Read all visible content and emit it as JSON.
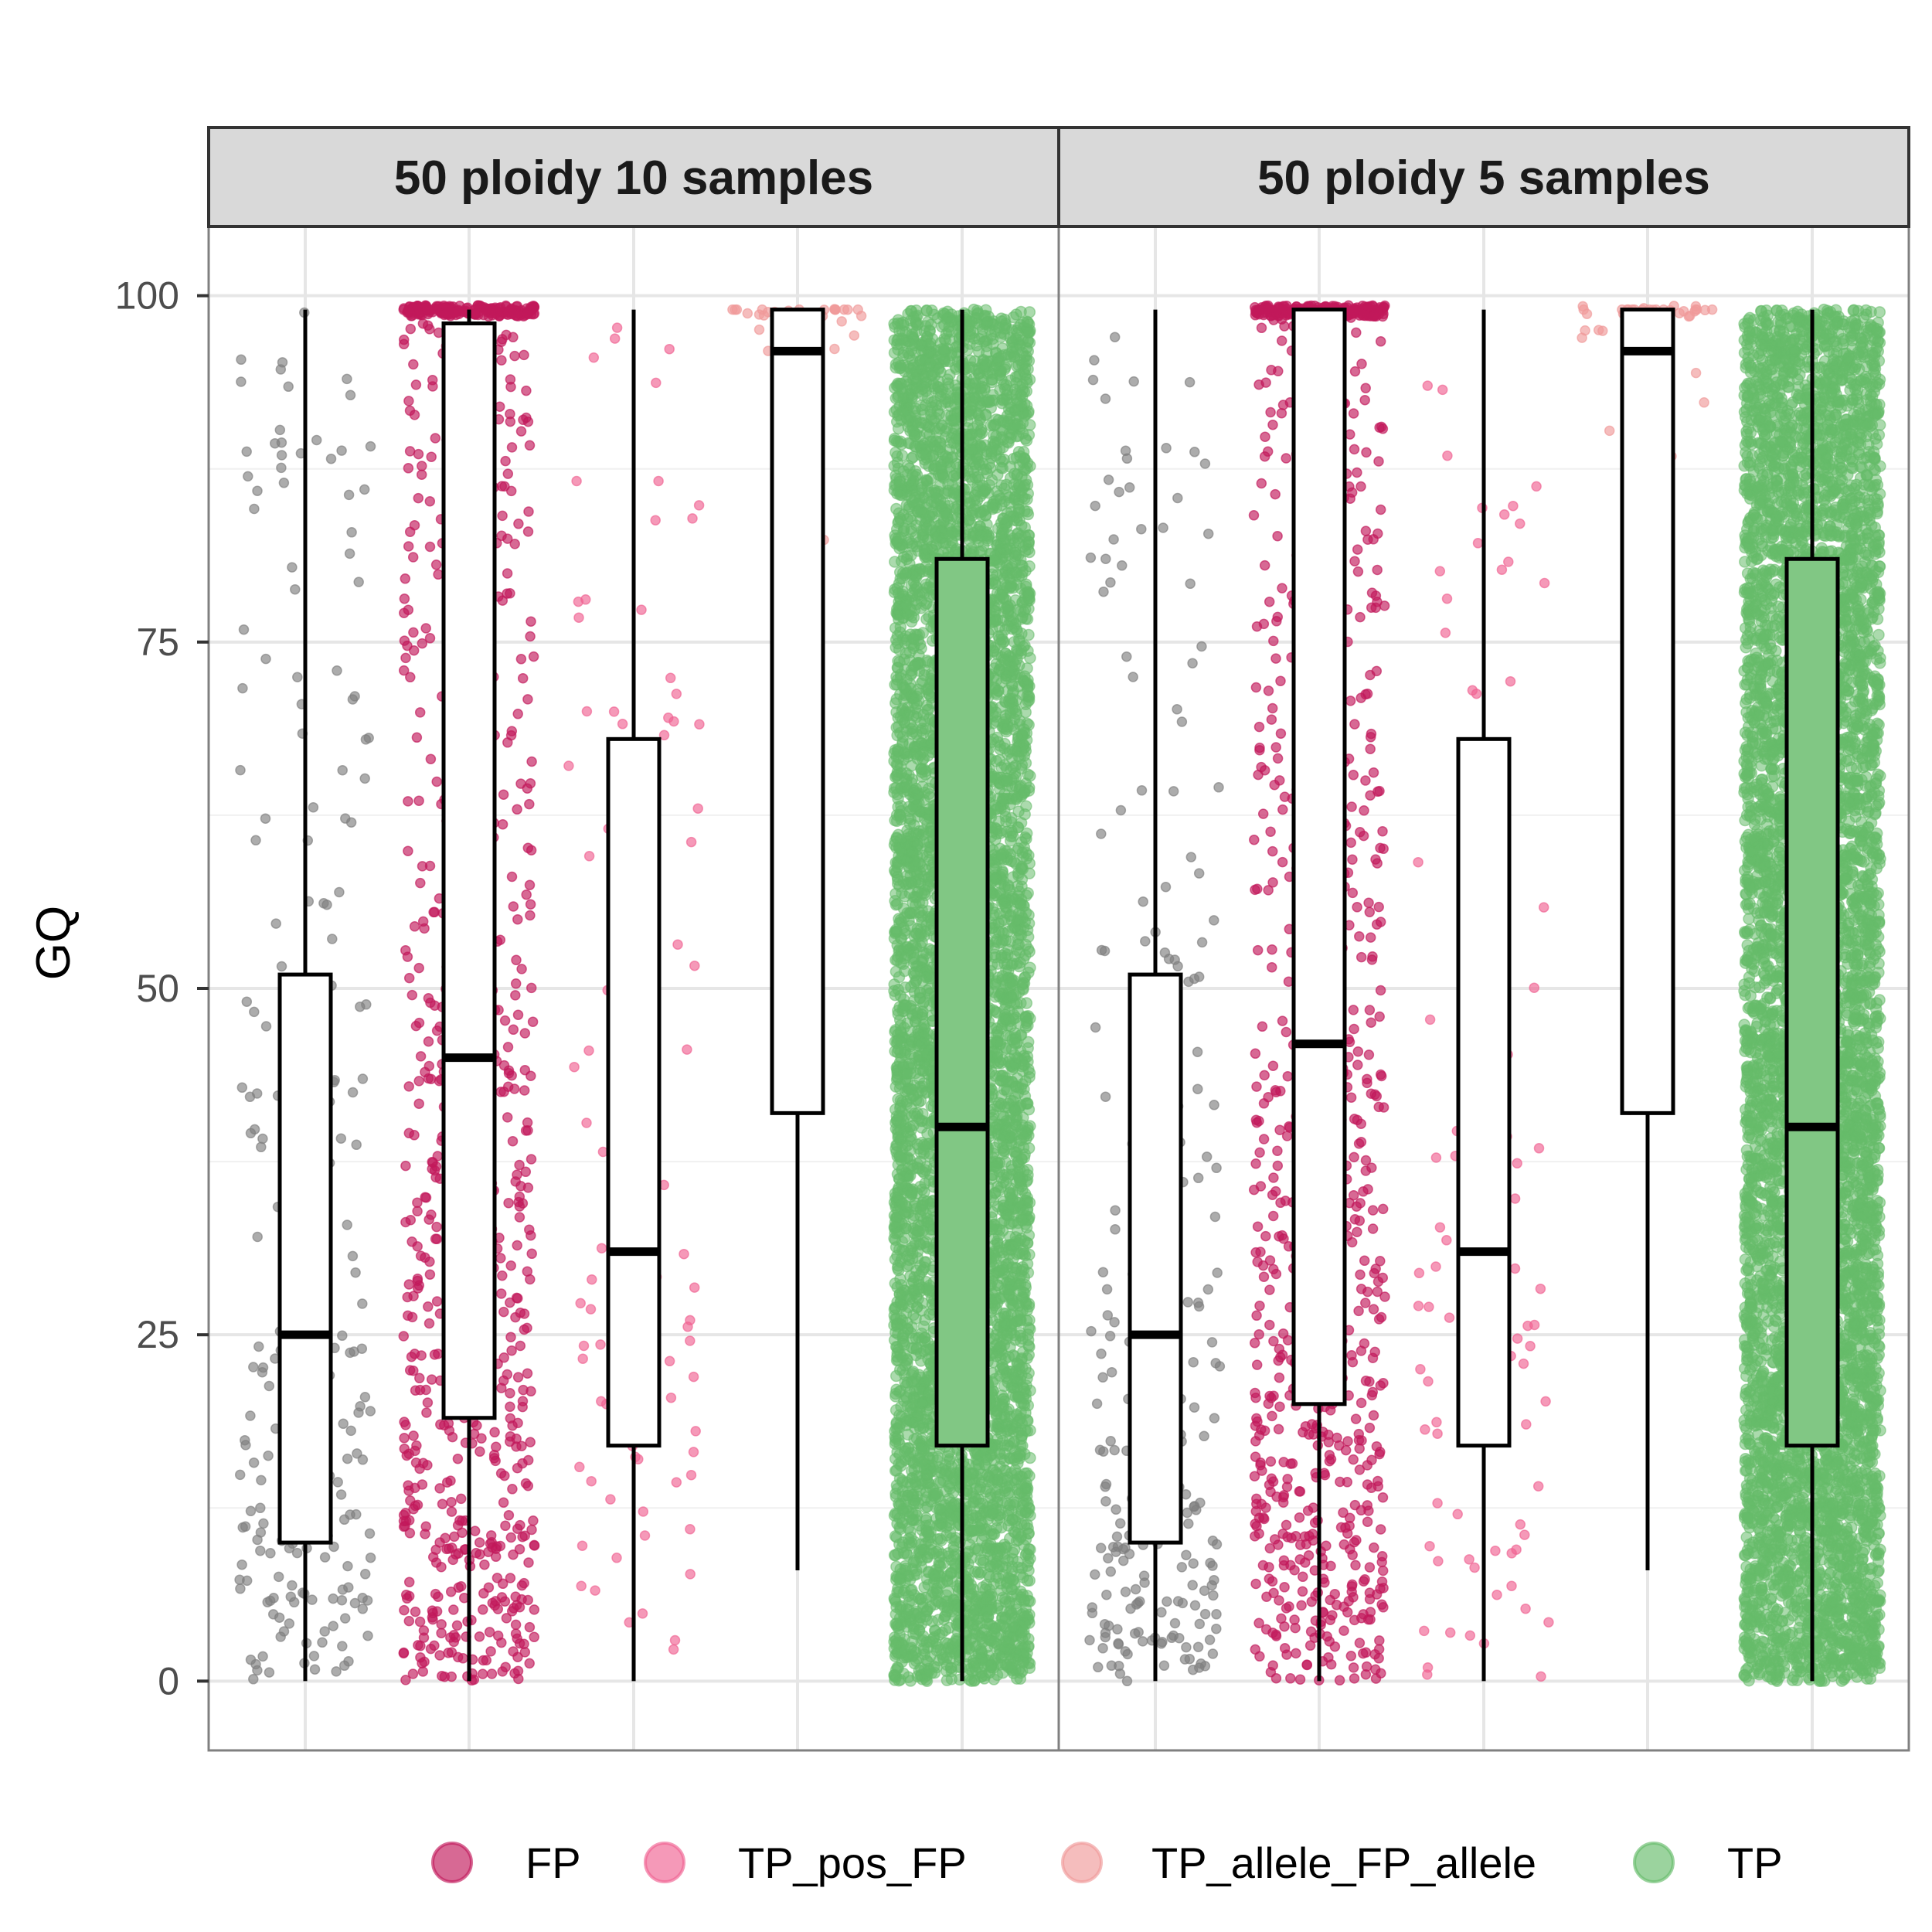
{
  "chart_data": {
    "type": "boxplot with jittered points",
    "ylabel": "GQ",
    "xlabel": "",
    "ylim": [
      -5,
      105
    ],
    "yticks": [
      "0",
      "25",
      "50",
      "75",
      "100"
    ],
    "grid": true,
    "legend_position": "bottom",
    "legend": [
      {
        "name": "FP",
        "color": "#c2185b"
      },
      {
        "name": "TP_pos_FP",
        "color": "#f06292"
      },
      {
        "name": "TP_allele_FP_allele",
        "color": "#ef9a9a"
      },
      {
        "name": "TP",
        "color": "#66bb6a"
      }
    ],
    "groups": [
      {
        "key": "unlabeled",
        "color": "#808080",
        "fill": "#ffffff"
      },
      {
        "key": "FP",
        "color": "#c2185b",
        "fill": "#ffffff"
      },
      {
        "key": "TP_pos_FP",
        "color": "#f06292",
        "fill": "#ffffff"
      },
      {
        "key": "TP_allele_FP_allele",
        "color": "#ef9a9a",
        "fill": "#ffffff"
      },
      {
        "key": "TP",
        "color": "#66bb6a",
        "fill": "#81c784"
      }
    ],
    "panels": [
      {
        "title": "50 ploidy 10 samples",
        "boxes": [
          {
            "group": "unlabeled",
            "min": 0,
            "q1": 10,
            "median": 25,
            "q3": 51,
            "max": 99,
            "n_points": 230
          },
          {
            "group": "FP",
            "min": 0,
            "q1": 19,
            "median": 45,
            "q3": 98,
            "max": 99,
            "n_points": 900
          },
          {
            "group": "TP_pos_FP",
            "min": 0,
            "q1": 17,
            "median": 31,
            "q3": 68,
            "max": 99,
            "n_points": 95
          },
          {
            "group": "TP_allele_FP_allele",
            "min": 8,
            "q1": 41,
            "median": 96,
            "q3": 99,
            "max": 99,
            "n_points": 40
          },
          {
            "group": "TP",
            "min": 0,
            "q1": 17,
            "median": 40,
            "q3": 81,
            "max": 99,
            "n_points": 7000
          }
        ]
      },
      {
        "title": "50 ploidy 5 samples",
        "boxes": [
          {
            "group": "unlabeled",
            "min": 0,
            "q1": 10,
            "median": 25,
            "q3": 51,
            "max": 99,
            "n_points": 230
          },
          {
            "group": "FP",
            "min": 0,
            "q1": 20,
            "median": 46,
            "q3": 99,
            "max": 99,
            "n_points": 950
          },
          {
            "group": "TP_pos_FP",
            "min": 0,
            "q1": 17,
            "median": 31,
            "q3": 68,
            "max": 99,
            "n_points": 95
          },
          {
            "group": "TP_allele_FP_allele",
            "min": 8,
            "q1": 41,
            "median": 96,
            "q3": 99,
            "max": 99,
            "n_points": 40
          },
          {
            "group": "TP",
            "min": 0,
            "q1": 17,
            "median": 40,
            "q3": 81,
            "max": 99,
            "n_points": 7000
          }
        ]
      }
    ]
  }
}
